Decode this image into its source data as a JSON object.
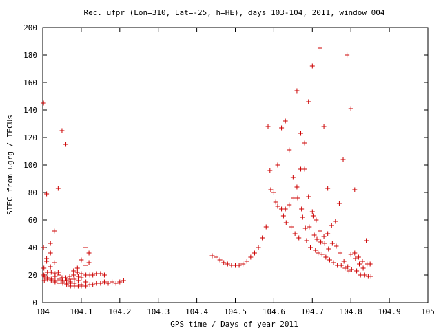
{
  "chart_data": {
    "type": "scatter",
    "title": "Rec. ufpr (Lon=310, Lat=-25, h=HE), days 103-104, 2011, window 004",
    "xlabel": "GPS time / Days of year 2011",
    "ylabel": "STEC from ugrg / TECUs",
    "xlim": [
      104,
      105
    ],
    "ylim": [
      0,
      200
    ],
    "xticks": [
      "104",
      "104.1",
      "104.2",
      "104.3",
      "104.4",
      "104.5",
      "104.6",
      "104.7",
      "104.8",
      "104.9",
      "105"
    ],
    "yticks": [
      "0",
      "20",
      "40",
      "60",
      "80",
      "100",
      "120",
      "140",
      "160",
      "180",
      "200"
    ],
    "marker": "+",
    "color": "#cc0000",
    "series": [
      {
        "name": "STEC",
        "points": [
          [
            104.002,
            145
          ],
          [
            104.002,
            40
          ],
          [
            104.003,
            25
          ],
          [
            104.003,
            20
          ],
          [
            104.004,
            19
          ],
          [
            104.004,
            16
          ],
          [
            104.01,
            79
          ],
          [
            104.01,
            32
          ],
          [
            104.01,
            30
          ],
          [
            104.012,
            22
          ],
          [
            104.012,
            18
          ],
          [
            104.012,
            17
          ],
          [
            104.02,
            43
          ],
          [
            104.02,
            36
          ],
          [
            104.02,
            26
          ],
          [
            104.022,
            22
          ],
          [
            104.022,
            17
          ],
          [
            104.022,
            16
          ],
          [
            104.03,
            52
          ],
          [
            104.03,
            29
          ],
          [
            104.032,
            21
          ],
          [
            104.032,
            19
          ],
          [
            104.032,
            16
          ],
          [
            104.032,
            15
          ],
          [
            104.04,
            83
          ],
          [
            104.04,
            22
          ],
          [
            104.042,
            20
          ],
          [
            104.042,
            17
          ],
          [
            104.042,
            16
          ],
          [
            104.042,
            14
          ],
          [
            104.05,
            125
          ],
          [
            104.05,
            18
          ],
          [
            104.052,
            16
          ],
          [
            104.052,
            15
          ],
          [
            104.052,
            14
          ],
          [
            104.06,
            115
          ],
          [
            104.06,
            18
          ],
          [
            104.062,
            16
          ],
          [
            104.062,
            14
          ],
          [
            104.062,
            13
          ],
          [
            104.07,
            19
          ],
          [
            104.07,
            17
          ],
          [
            104.072,
            15
          ],
          [
            104.072,
            14
          ],
          [
            104.072,
            12
          ],
          [
            104.08,
            23
          ],
          [
            104.08,
            20
          ],
          [
            104.082,
            17
          ],
          [
            104.082,
            14
          ],
          [
            104.082,
            12
          ],
          [
            104.09,
            25
          ],
          [
            104.09,
            22
          ],
          [
            104.092,
            19
          ],
          [
            104.092,
            16
          ],
          [
            104.092,
            12
          ],
          [
            104.1,
            31
          ],
          [
            104.1,
            21
          ],
          [
            104.1,
            18
          ],
          [
            104.1,
            13
          ],
          [
            104.1,
            12
          ],
          [
            104.11,
            40
          ],
          [
            104.11,
            27
          ],
          [
            104.112,
            20
          ],
          [
            104.112,
            15
          ],
          [
            104.112,
            12
          ],
          [
            104.12,
            36
          ],
          [
            104.12,
            29
          ],
          [
            104.122,
            20
          ],
          [
            104.122,
            13
          ],
          [
            104.13,
            20
          ],
          [
            104.13,
            13
          ],
          [
            104.14,
            21
          ],
          [
            104.14,
            14
          ],
          [
            104.15,
            21
          ],
          [
            104.15,
            14
          ],
          [
            104.16,
            20
          ],
          [
            104.16,
            15
          ],
          [
            104.17,
            14
          ],
          [
            104.18,
            15
          ],
          [
            104.19,
            14
          ],
          [
            104.2,
            15
          ],
          [
            104.21,
            16
          ],
          [
            104.44,
            34
          ],
          [
            104.45,
            33
          ],
          [
            104.46,
            31
          ],
          [
            104.47,
            29
          ],
          [
            104.48,
            28
          ],
          [
            104.49,
            27
          ],
          [
            104.5,
            27
          ],
          [
            104.51,
            27
          ],
          [
            104.52,
            28
          ],
          [
            104.53,
            30
          ],
          [
            104.54,
            33
          ],
          [
            104.55,
            36
          ],
          [
            104.56,
            40
          ],
          [
            104.57,
            47
          ],
          [
            104.58,
            55
          ],
          [
            104.585,
            128
          ],
          [
            104.59,
            96
          ],
          [
            104.592,
            82
          ],
          [
            104.6,
            80
          ],
          [
            104.605,
            73
          ],
          [
            104.61,
            100
          ],
          [
            104.61,
            70
          ],
          [
            104.62,
            127
          ],
          [
            104.62,
            68
          ],
          [
            104.625,
            63
          ],
          [
            104.63,
            132
          ],
          [
            104.63,
            68
          ],
          [
            104.632,
            58
          ],
          [
            104.64,
            111
          ],
          [
            104.64,
            71
          ],
          [
            104.645,
            55
          ],
          [
            104.65,
            91
          ],
          [
            104.652,
            76
          ],
          [
            104.655,
            50
          ],
          [
            104.66,
            154
          ],
          [
            104.66,
            84
          ],
          [
            104.662,
            76
          ],
          [
            104.665,
            47
          ],
          [
            104.67,
            123
          ],
          [
            104.67,
            97
          ],
          [
            104.672,
            68
          ],
          [
            104.675,
            62
          ],
          [
            104.68,
            116
          ],
          [
            104.68,
            97
          ],
          [
            104.682,
            54
          ],
          [
            104.685,
            45
          ],
          [
            104.69,
            146
          ],
          [
            104.69,
            77
          ],
          [
            104.692,
            55
          ],
          [
            104.695,
            40
          ],
          [
            104.7,
            172
          ],
          [
            104.7,
            66
          ],
          [
            104.702,
            63
          ],
          [
            104.705,
            49
          ],
          [
            104.708,
            38
          ],
          [
            104.71,
            60
          ],
          [
            104.712,
            46
          ],
          [
            104.715,
            36
          ],
          [
            104.72,
            185
          ],
          [
            104.72,
            52
          ],
          [
            104.722,
            44
          ],
          [
            104.725,
            35
          ],
          [
            104.73,
            128
          ],
          [
            104.73,
            48
          ],
          [
            104.732,
            43
          ],
          [
            104.735,
            33
          ],
          [
            104.74,
            83
          ],
          [
            104.74,
            50
          ],
          [
            104.742,
            39
          ],
          [
            104.745,
            31
          ],
          [
            104.75,
            56
          ],
          [
            104.752,
            43
          ],
          [
            104.755,
            29
          ],
          [
            104.76,
            59
          ],
          [
            104.762,
            41
          ],
          [
            104.765,
            27
          ],
          [
            104.77,
            72
          ],
          [
            104.772,
            36
          ],
          [
            104.775,
            27
          ],
          [
            104.78,
            104
          ],
          [
            104.782,
            30
          ],
          [
            104.785,
            25
          ],
          [
            104.79,
            180
          ],
          [
            104.792,
            26
          ],
          [
            104.795,
            23
          ],
          [
            104.8,
            141
          ],
          [
            104.8,
            35
          ],
          [
            104.802,
            24
          ],
          [
            104.81,
            82
          ],
          [
            104.81,
            36
          ],
          [
            104.812,
            32
          ],
          [
            104.815,
            23
          ],
          [
            104.82,
            33
          ],
          [
            104.822,
            28
          ],
          [
            104.825,
            20
          ],
          [
            104.83,
            30
          ],
          [
            104.832,
            25
          ],
          [
            104.835,
            20
          ],
          [
            104.84,
            45
          ],
          [
            104.842,
            28
          ],
          [
            104.845,
            19
          ],
          [
            104.85,
            28
          ],
          [
            104.852,
            19
          ]
        ]
      }
    ]
  }
}
